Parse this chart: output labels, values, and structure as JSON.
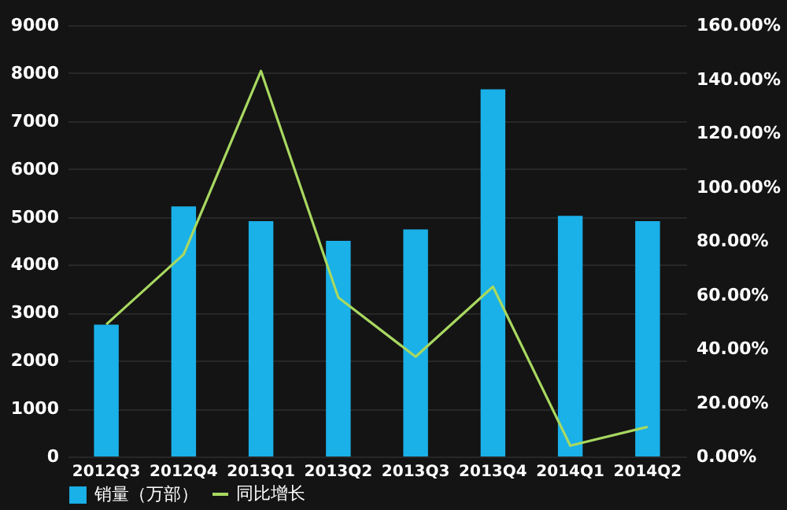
{
  "chart_data": {
    "type": "bar",
    "categories": [
      "2012Q3",
      "2012Q4",
      "2013Q1",
      "2013Q2",
      "2013Q3",
      "2013Q4",
      "2014Q1",
      "2014Q2"
    ],
    "series": [
      {
        "name": "销量（万部）",
        "color": "#1ab0e8",
        "values": [
          2750,
          5220,
          4910,
          4500,
          4740,
          7660,
          5020,
          4910
        ]
      },
      {
        "name": "同比增长",
        "type": "line",
        "axis": "y2",
        "color": "#a8d860",
        "values": [
          49,
          75,
          143,
          59,
          37,
          63,
          4,
          11
        ]
      }
    ],
    "ylim": [
      0,
      9000
    ],
    "yticks": [
      0,
      1000,
      2000,
      3000,
      4000,
      5000,
      6000,
      7000,
      8000,
      9000
    ],
    "y2lim": [
      0,
      160
    ],
    "y2ticks": [
      {
        "value": 0,
        "label": "0.00%"
      },
      {
        "value": 20,
        "label": "20.00%"
      },
      {
        "value": 40,
        "label": "40.00%"
      },
      {
        "value": 60,
        "label": "60.00%"
      },
      {
        "value": 80,
        "label": "80.00%"
      },
      {
        "value": 100,
        "label": "100.00%"
      },
      {
        "value": 120,
        "label": "120.00%"
      },
      {
        "value": 140,
        "label": "140.00%"
      },
      {
        "value": 160,
        "label": "160.00%"
      }
    ],
    "grid": "y",
    "legend": "bottom left",
    "marker": "none",
    "line_style": "solid"
  }
}
